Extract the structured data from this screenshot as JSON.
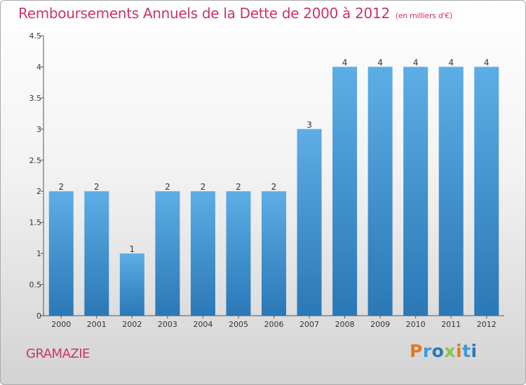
{
  "header": {
    "title": "Remboursements Annuels de la Dette de 2000 à 2012",
    "subtitle": "(en milliers d'€)"
  },
  "footer": {
    "place": "GRAMAZIE",
    "brand": "Proxiti"
  },
  "colors": {
    "title": "#cc3366",
    "bar_light": "#5dade6",
    "bar_dark": "#2a78b6",
    "brand_letters": [
      "#e07a22",
      "#3b9ad8",
      "#2a78b6",
      "#8bc34a",
      "#e07a22",
      "#3b9ad8",
      "#2a78b6"
    ]
  },
  "chart_data": {
    "type": "bar",
    "categories": [
      "2000",
      "2001",
      "2002",
      "2003",
      "2004",
      "2005",
      "2006",
      "2007",
      "2008",
      "2009",
      "2010",
      "2011",
      "2012"
    ],
    "values": [
      2,
      2,
      1,
      2,
      2,
      2,
      2,
      3,
      4,
      4,
      4,
      4,
      4
    ],
    "data_labels": [
      "2",
      "2",
      "1",
      "2",
      "2",
      "2",
      "2",
      "3",
      "4",
      "4",
      "4",
      "4",
      "4"
    ],
    "y_ticks": [
      0,
      0.5,
      1,
      1.5,
      2,
      2.5,
      3,
      3.5,
      4,
      4.5
    ],
    "y_tick_labels": [
      "0",
      "0.5",
      "1",
      "1.5",
      "2",
      "2.5",
      "3",
      "3.5",
      "4",
      "4.5"
    ],
    "ylim": [
      0,
      4.5
    ],
    "grid": false,
    "legend": "none"
  }
}
